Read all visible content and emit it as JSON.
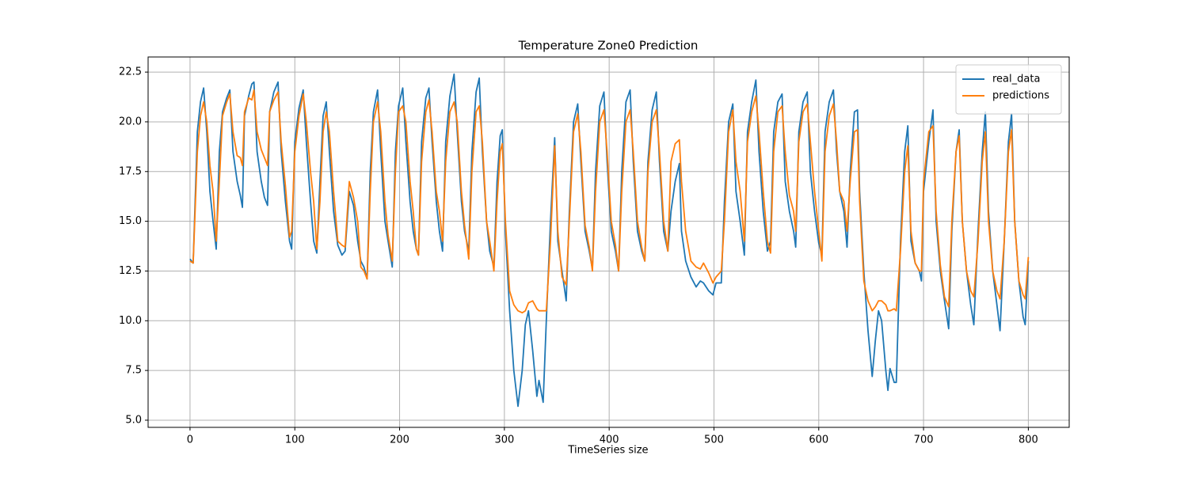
{
  "chart_data": {
    "type": "line",
    "title": "Temperature Zone0 Prediction",
    "x_label": "TimeSeries size",
    "x": [
      0,
      3,
      7,
      10,
      13,
      16,
      19,
      22,
      25,
      28,
      31,
      35,
      38,
      41,
      45,
      48,
      50,
      52,
      56,
      59,
      61,
      64,
      68,
      71,
      74,
      76,
      80,
      84,
      87,
      91,
      95,
      97,
      100,
      104,
      108,
      111,
      115,
      118,
      121,
      124,
      127,
      130,
      133,
      137,
      141,
      145,
      148,
      152,
      156,
      160,
      163,
      166,
      169,
      172,
      175,
      179,
      182,
      186,
      189,
      193,
      196,
      199,
      203,
      206,
      210,
      213,
      216,
      218,
      221,
      225,
      228,
      231,
      235,
      238,
      241,
      244,
      248,
      252,
      255,
      259,
      262,
      266,
      269,
      273,
      276,
      279,
      283,
      286,
      290,
      293,
      296,
      298,
      301,
      305,
      309,
      313,
      317,
      320,
      323,
      327,
      331,
      333,
      337,
      340,
      344,
      348,
      351,
      355,
      359,
      362,
      366,
      370,
      373,
      377,
      381,
      384,
      387,
      391,
      395,
      398,
      402,
      406,
      409,
      412,
      416,
      420,
      423,
      427,
      431,
      434,
      437,
      441,
      445,
      448,
      452,
      456,
      459,
      463,
      467,
      469,
      473,
      478,
      483,
      487,
      490,
      495,
      499,
      502,
      507,
      510,
      514,
      518,
      521,
      525,
      529,
      532,
      536,
      540,
      543,
      547,
      551,
      554,
      557,
      561,
      565,
      568,
      572,
      576,
      578,
      581,
      585,
      589,
      592,
      596,
      600,
      603,
      606,
      610,
      614,
      617,
      620,
      624,
      627,
      630,
      634,
      637,
      639,
      643,
      647,
      651,
      654,
      657,
      660,
      664,
      666,
      668,
      672,
      674,
      678,
      682,
      685,
      688,
      692,
      696,
      698,
      700,
      705,
      709,
      712,
      716,
      720,
      724,
      727,
      731,
      734,
      737,
      741,
      745,
      748,
      752,
      756,
      759,
      762,
      766,
      770,
      773,
      777,
      781,
      784,
      787,
      791,
      795,
      797,
      800
    ],
    "series": [
      {
        "name": "real_data",
        "color": "#1f77b4",
        "values": [
          13.1,
          12.9,
          19.5,
          21.0,
          21.7,
          19.5,
          16.5,
          15.0,
          13.6,
          18.5,
          20.5,
          21.2,
          21.6,
          18.5,
          17.0,
          16.3,
          15.7,
          20.3,
          21.3,
          21.9,
          22.0,
          18.5,
          17.0,
          16.2,
          15.8,
          20.5,
          21.5,
          22.0,
          18.5,
          16.0,
          14.0,
          13.6,
          19.0,
          20.7,
          21.6,
          19.0,
          16.0,
          14.0,
          13.4,
          17.0,
          20.3,
          21.0,
          18.5,
          15.5,
          13.8,
          13.3,
          13.5,
          16.5,
          15.8,
          14.0,
          13.0,
          12.7,
          12.1,
          17.5,
          20.5,
          21.6,
          18.5,
          15.0,
          14.0,
          12.7,
          18.5,
          20.8,
          21.7,
          19.0,
          16.0,
          14.5,
          13.6,
          13.3,
          19.0,
          21.2,
          21.7,
          19.0,
          16.0,
          14.5,
          13.5,
          19.0,
          21.3,
          22.4,
          19.5,
          16.0,
          14.5,
          13.5,
          18.5,
          21.5,
          22.2,
          18.5,
          15.0,
          13.5,
          12.7,
          17.0,
          19.3,
          19.6,
          14.5,
          10.5,
          7.5,
          5.7,
          7.5,
          9.8,
          10.5,
          8.5,
          6.2,
          7.0,
          5.9,
          10.0,
          15.0,
          19.2,
          14.0,
          12.5,
          11.0,
          15.5,
          20.0,
          20.9,
          18.0,
          14.5,
          13.5,
          12.6,
          17.5,
          20.8,
          21.5,
          18.0,
          14.5,
          13.5,
          12.5,
          17.5,
          21.0,
          21.6,
          18.0,
          14.5,
          13.5,
          13.0,
          18.0,
          20.6,
          21.5,
          18.0,
          14.5,
          13.5,
          15.5,
          17.0,
          17.9,
          14.5,
          13.0,
          12.2,
          11.7,
          12.0,
          11.9,
          11.5,
          11.3,
          11.9,
          11.9,
          16.0,
          20.0,
          20.9,
          16.5,
          15.0,
          13.3,
          19.5,
          21.0,
          22.1,
          18.5,
          15.5,
          13.5,
          14.0,
          19.5,
          21.0,
          21.4,
          17.0,
          15.5,
          14.5,
          13.7,
          19.5,
          21.0,
          21.5,
          17.5,
          15.5,
          13.9,
          13.3,
          19.5,
          21.0,
          21.6,
          18.5,
          16.5,
          15.5,
          13.7,
          17.5,
          20.5,
          20.6,
          16.5,
          12.5,
          9.5,
          7.2,
          9.0,
          10.5,
          10.0,
          7.5,
          6.5,
          7.6,
          6.9,
          6.9,
          14.0,
          18.5,
          19.8,
          14.0,
          12.9,
          12.5,
          12.0,
          16.5,
          19.0,
          20.6,
          15.0,
          12.5,
          11.0,
          9.6,
          14.5,
          18.5,
          19.6,
          15.0,
          12.5,
          10.8,
          9.8,
          14.5,
          18.5,
          20.5,
          15.5,
          12.5,
          10.8,
          9.5,
          14.0,
          19.0,
          20.4,
          15.0,
          12.0,
          10.2,
          9.8,
          13.0
        ]
      },
      {
        "name": "predictions",
        "color": "#ff7f0e",
        "values": [
          13.0,
          12.9,
          18.5,
          20.3,
          21.0,
          20.0,
          17.8,
          16.5,
          14.0,
          17.0,
          20.3,
          21.0,
          21.4,
          19.5,
          18.3,
          18.2,
          17.8,
          20.5,
          21.2,
          21.1,
          21.6,
          19.5,
          18.6,
          18.2,
          17.8,
          20.5,
          21.1,
          21.5,
          19.0,
          16.8,
          14.2,
          14.5,
          18.5,
          20.3,
          21.4,
          20.0,
          17.5,
          16.0,
          13.6,
          16.0,
          19.5,
          20.5,
          19.5,
          16.5,
          14.0,
          13.8,
          13.7,
          17.0,
          16.2,
          15.0,
          12.7,
          12.5,
          12.1,
          16.5,
          20.0,
          21.0,
          19.5,
          16.0,
          14.3,
          13.0,
          17.5,
          20.5,
          20.8,
          20.0,
          17.0,
          15.5,
          13.6,
          13.3,
          18.0,
          20.5,
          21.1,
          19.5,
          16.5,
          15.5,
          14.0,
          18.0,
          20.5,
          21.0,
          20.0,
          16.5,
          14.8,
          13.1,
          17.5,
          20.5,
          20.8,
          19.0,
          15.0,
          14.0,
          12.5,
          16.0,
          18.5,
          18.9,
          15.0,
          11.5,
          10.8,
          10.5,
          10.4,
          10.5,
          10.9,
          11.0,
          10.6,
          10.5,
          10.5,
          10.5,
          14.0,
          18.8,
          14.5,
          12.2,
          11.8,
          15.0,
          19.5,
          20.4,
          18.5,
          14.8,
          13.7,
          12.5,
          16.5,
          20.0,
          20.6,
          18.5,
          15.0,
          13.8,
          12.5,
          16.5,
          20.0,
          20.6,
          18.5,
          15.0,
          13.7,
          13.0,
          17.5,
          20.0,
          20.6,
          18.5,
          15.0,
          13.5,
          18.0,
          18.9,
          19.1,
          17.0,
          14.5,
          13.0,
          12.7,
          12.6,
          12.9,
          12.4,
          11.9,
          12.2,
          12.5,
          15.0,
          19.5,
          20.6,
          18.0,
          16.5,
          14.0,
          19.0,
          20.5,
          21.3,
          19.5,
          16.5,
          14.0,
          13.4,
          18.5,
          20.5,
          20.8,
          18.5,
          16.3,
          15.5,
          14.5,
          19.0,
          20.5,
          20.9,
          19.0,
          16.5,
          14.5,
          13.0,
          18.5,
          20.3,
          20.9,
          19.0,
          16.5,
          16.0,
          14.5,
          17.0,
          19.5,
          19.6,
          16.0,
          12.0,
          11.0,
          10.5,
          10.7,
          11.0,
          11.0,
          10.8,
          10.5,
          10.5,
          10.6,
          10.5,
          13.5,
          17.5,
          18.8,
          14.5,
          12.9,
          12.5,
          12.5,
          17.0,
          19.5,
          19.8,
          15.5,
          12.8,
          11.2,
          10.7,
          15.0,
          18.5,
          19.3,
          15.0,
          12.5,
          11.5,
          11.2,
          14.0,
          18.0,
          19.5,
          15.0,
          12.5,
          11.5,
          11.1,
          14.0,
          18.5,
          19.6,
          15.0,
          12.0,
          11.3,
          11.1,
          13.2
        ]
      }
    ],
    "xlim": [
      -40,
      839
    ],
    "ylim": [
      4.64,
      23.26
    ],
    "xticks": [
      0,
      100,
      200,
      300,
      400,
      500,
      600,
      700,
      800
    ],
    "yticks": [
      {
        "value": 5,
        "label": "5.0"
      },
      7.5,
      {
        "value": 10,
        "label": "10.0"
      },
      12.5,
      {
        "value": 15,
        "label": "15.0"
      },
      17.5,
      {
        "value": 20,
        "label": "20.0"
      },
      22.5
    ],
    "grid": true,
    "legend": "upper right"
  }
}
